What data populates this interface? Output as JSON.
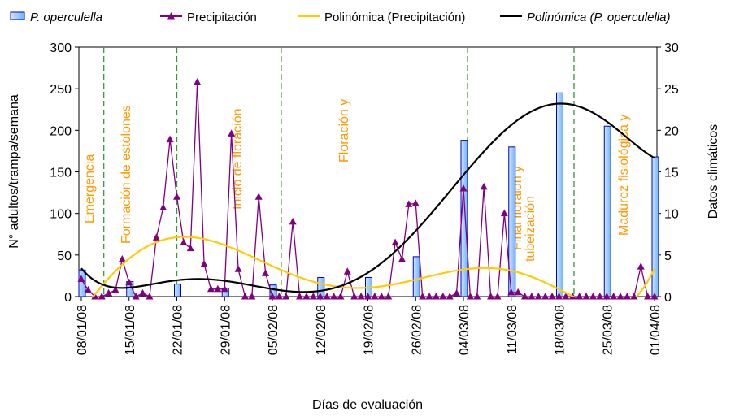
{
  "chart_data": {
    "type": "combo",
    "categories": [
      "08/01/08",
      null,
      null,
      null,
      null,
      null,
      null,
      "15/01/08",
      null,
      null,
      null,
      null,
      null,
      null,
      "22/01/08",
      null,
      null,
      null,
      null,
      null,
      null,
      "29/01/08",
      null,
      null,
      null,
      null,
      null,
      null,
      "05/02/08",
      null,
      null,
      null,
      null,
      null,
      null,
      "12/02/08",
      null,
      null,
      null,
      null,
      null,
      null,
      "19/02/08",
      null,
      null,
      null,
      null,
      null,
      null,
      "26/02/08",
      null,
      null,
      null,
      null,
      null,
      null,
      "04/03/08",
      null,
      null,
      null,
      null,
      null,
      null,
      "11/03/08",
      null,
      null,
      null,
      null,
      null,
      null,
      "18/03/08",
      null,
      null,
      null,
      null,
      null,
      null,
      "25/03/08",
      null,
      null,
      null,
      null,
      null,
      null,
      "01/04/08"
    ],
    "series": [
      {
        "name": "P. operculella",
        "type": "bar",
        "color": "#99ccff",
        "edge_color": "#0000cc",
        "values": [
          32,
          null,
          null,
          null,
          null,
          null,
          null,
          18,
          null,
          null,
          null,
          null,
          null,
          null,
          15,
          null,
          null,
          null,
          null,
          null,
          null,
          10,
          null,
          null,
          null,
          null,
          null,
          null,
          14,
          null,
          null,
          null,
          null,
          null,
          null,
          23,
          null,
          null,
          null,
          null,
          null,
          null,
          23,
          null,
          null,
          null,
          null,
          null,
          null,
          48,
          null,
          null,
          null,
          null,
          null,
          null,
          188,
          null,
          null,
          null,
          null,
          null,
          null,
          180,
          null,
          null,
          null,
          null,
          null,
          null,
          245,
          null,
          null,
          null,
          null,
          null,
          null,
          205,
          null,
          null,
          null,
          null,
          null,
          null,
          168
        ]
      },
      {
        "name": "Precipitación",
        "type": "line",
        "marker": "triangle",
        "color": "#800080",
        "axis": "y2",
        "values": [
          2.1,
          0.8,
          0,
          0,
          0.4,
          0.8,
          4.5,
          1.7,
          0,
          0.4,
          0,
          7.1,
          10.7,
          18.9,
          12,
          6.5,
          5.8,
          25.8,
          3.9,
          0.9,
          0.9,
          0.9,
          19.6,
          3.3,
          0,
          0,
          12,
          2.8,
          0,
          0,
          0,
          9,
          0,
          0,
          0,
          0,
          0,
          0,
          0,
          3,
          0,
          0,
          0,
          0,
          0,
          0,
          6.5,
          4.5,
          11.1,
          11.2,
          0,
          0,
          0,
          0,
          0,
          0.4,
          13,
          0,
          0,
          13.2,
          0,
          0,
          10,
          0.5,
          0.5,
          0,
          0,
          0,
          0,
          0,
          0,
          0,
          0,
          0,
          0,
          0,
          0,
          0,
          0,
          0,
          0,
          0,
          3.6,
          0,
          0
        ]
      },
      {
        "name": "Polinómica (Precipitación)",
        "type": "trend",
        "trend_of": 1,
        "order": 6,
        "color": "#ffcc00",
        "axis": "y2"
      },
      {
        "name": "Polinómica (P. operculella)",
        "type": "trend",
        "trend_of": 0,
        "order": 6,
        "color": "#000000"
      }
    ],
    "ylim": [
      0,
      300
    ],
    "yticks": [
      0,
      50,
      100,
      150,
      200,
      250,
      300
    ],
    "y2lim": [
      0,
      30
    ],
    "y2ticks": [
      0,
      5,
      10,
      15,
      20,
      25,
      30
    ],
    "ylabel": "N° adultos/trampa/semana",
    "y2label": "Datos climáticos",
    "xlabel": "Días de evaluación",
    "phase_lines": {
      "x": [
        3.3,
        14,
        29.3,
        56.6,
        72.2
      ],
      "color": "#339933"
    },
    "annotations": [
      "Emergencia",
      "Formación de estolones",
      "Inicio de floración",
      "Floración y",
      "Final floraion y",
      "tubeización",
      "Madurez fisiológica y"
    ],
    "annotation_color": "#ff9900"
  }
}
